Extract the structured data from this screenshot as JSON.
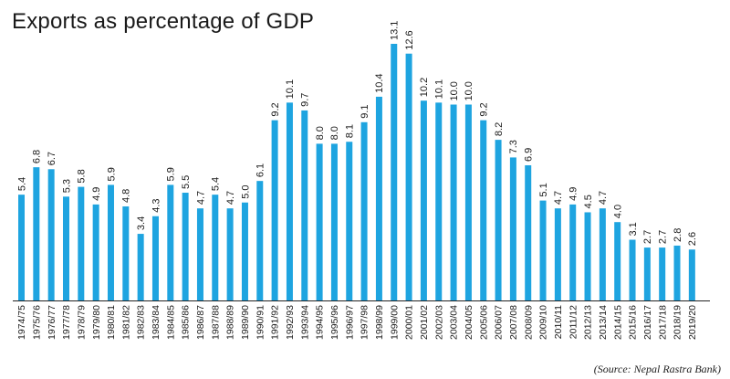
{
  "source": "(Source: Nepal Rastra Bank)",
  "colors": {
    "bar": "#1ea4e0",
    "text": "#1a1a1a",
    "axis": "#222222"
  },
  "chart_data": {
    "type": "bar",
    "title": "Exports as percentage of GDP",
    "xlabel": "",
    "ylabel": "",
    "ylim": [
      0,
      13.1
    ],
    "grid": false,
    "categories": [
      "1974/75",
      "1975/76",
      "1976/77",
      "1977/78",
      "1978/79",
      "1979/80",
      "1980/81",
      "1981/82",
      "1982/83",
      "1983/84",
      "1984/85",
      "1985/86",
      "1986/87",
      "1987/88",
      "1988/89",
      "1989/90",
      "1990/91",
      "1991/92",
      "1992/93",
      "1993/94",
      "1994/95",
      "1995/96",
      "1996/97",
      "1997/98",
      "1998/99",
      "1999/00",
      "2000/01",
      "2001/02",
      "2002/03",
      "2003/04",
      "2004/05",
      "2005/06",
      "2006/07",
      "2007/08",
      "2008/09",
      "2009/10",
      "2010/11",
      "2011/12",
      "2012/13",
      "2013/14",
      "2014/15",
      "2015/16",
      "2016/17",
      "2017/18",
      "2018/19",
      "2019/20"
    ],
    "values": [
      5.4,
      6.8,
      6.7,
      5.3,
      5.8,
      4.9,
      5.9,
      4.8,
      3.4,
      4.3,
      5.9,
      5.5,
      4.7,
      5.4,
      4.7,
      5.0,
      6.1,
      9.2,
      10.1,
      9.7,
      8.0,
      8.0,
      8.1,
      9.1,
      10.4,
      13.1,
      12.6,
      10.2,
      10.1,
      10.0,
      10.0,
      9.2,
      8.2,
      7.3,
      6.9,
      5.1,
      4.7,
      4.9,
      4.5,
      4.7,
      4.0,
      3.1,
      2.7,
      2.7,
      2.8,
      2.6
    ],
    "value_labels": [
      "5.4",
      "6.8",
      "6.7",
      "5.3",
      "5.8",
      "4.9",
      "5.9",
      "4.8",
      "3.4",
      "4.3",
      "5.9",
      "5.5",
      "4.7",
      "5.4",
      "4.7",
      "5.0",
      "6.1",
      "9.2",
      "10.1",
      "9.7",
      "8.0",
      "8.0",
      "8.1",
      "9.1",
      "10.4",
      "13.1",
      "12.6",
      "10.2",
      "10.1",
      "10.0",
      "10.0",
      "9.2",
      "8.2",
      "7.3",
      "6.9",
      "5.1",
      "4.7",
      "4.9",
      "4.5",
      "4.7",
      "4.0",
      "3.1",
      "2.7",
      "2.7",
      "2.8",
      "2.6"
    ]
  }
}
